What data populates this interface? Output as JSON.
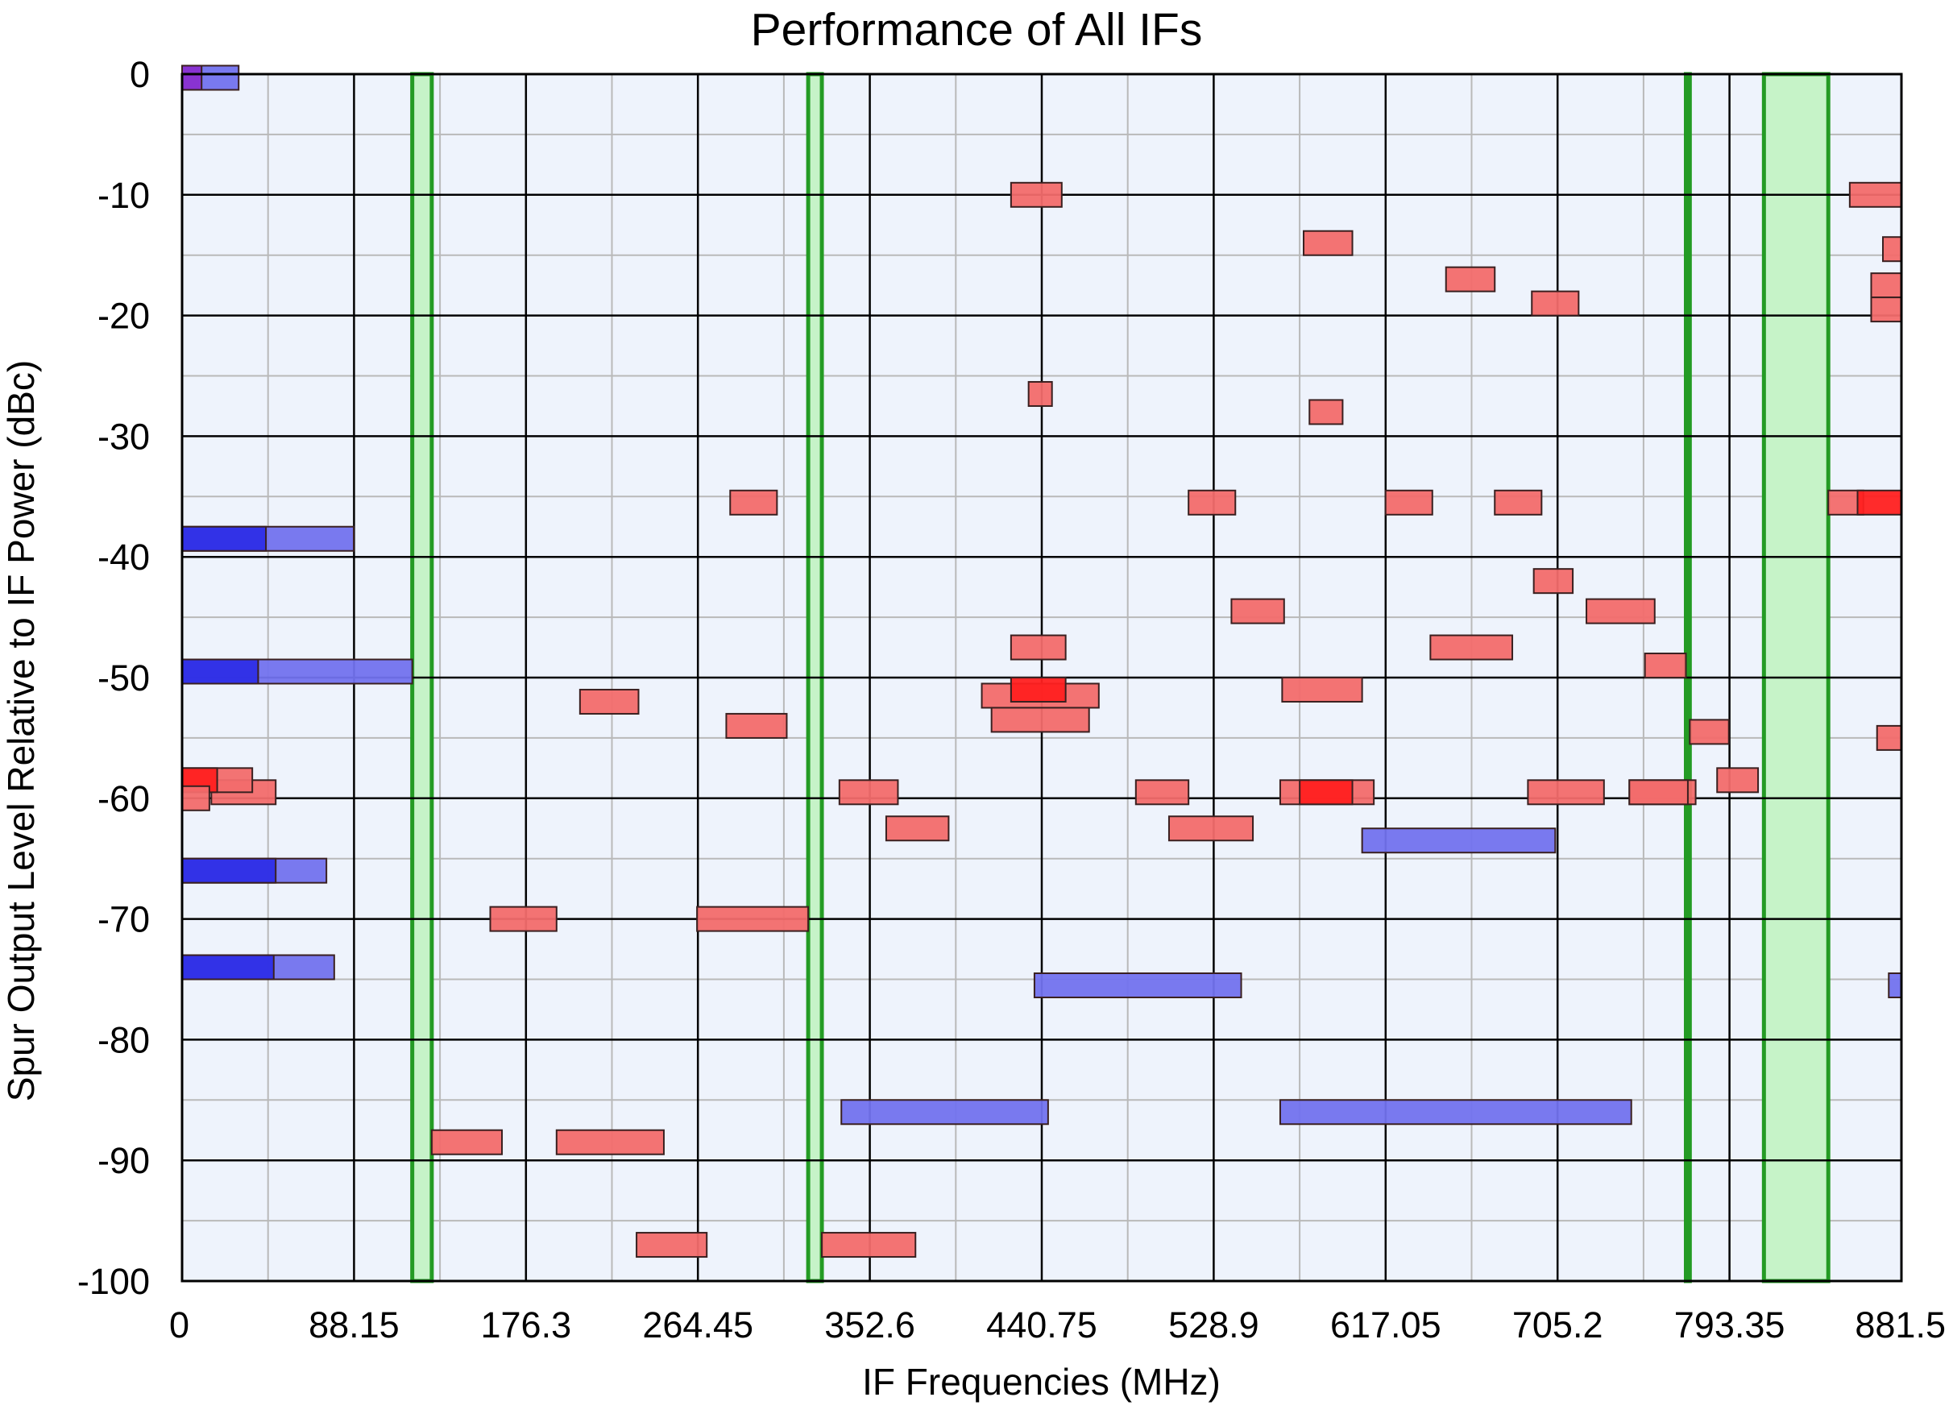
{
  "chart_data": {
    "type": "bar",
    "title": "Performance of All IFs",
    "xlabel": "IF Frequencies (MHz)",
    "ylabel": "Spur Output Level Relative to IF Power (dBc)",
    "xlim": [
      0,
      881.5
    ],
    "ylim": [
      -100,
      0
    ],
    "x_ticks": [
      0,
      88.15,
      176.3,
      264.45,
      352.6,
      440.75,
      528.9,
      617.05,
      705.2,
      793.35,
      881.5
    ],
    "x_tick_labels": [
      "0",
      "88.15",
      "176.3",
      "264.45",
      "352.6",
      "440.75",
      "528.9",
      "617.05",
      "705.2",
      "793.35",
      "881.5"
    ],
    "y_ticks": [
      0,
      -10,
      -20,
      -30,
      -40,
      -50,
      -60,
      -70,
      -80,
      -90,
      -100
    ],
    "y_tick_labels": [
      "0",
      "-10",
      "-20",
      "-30",
      "-40",
      "-50",
      "-60",
      "-70",
      "-80",
      "-90",
      "-100"
    ],
    "grid": true,
    "colors": {
      "plot_background": "#eef3fc",
      "major_grid": "#000000",
      "minor_grid": "#b9b9b9",
      "band_stroke": "#249b24",
      "band_fill": "#c6f3c8",
      "red_fill": "#f26b6b",
      "red_strong": "#ff2020",
      "blue_fill": "#7272ee",
      "blue_strong": "#2e2ee6",
      "purple": "#8a2fcf"
    },
    "green_bands": [
      {
        "x1": 118,
        "x2": 128
      },
      {
        "x1": 321,
        "x2": 328
      },
      {
        "x1": 771,
        "x2": 773
      },
      {
        "x1": 811,
        "x2": 844
      }
    ],
    "spur_bars": [
      {
        "x1": 0,
        "x2": 29,
        "y": -0.3,
        "color": "blue"
      },
      {
        "x1": 0,
        "x2": 10,
        "y": -0.3,
        "color": "purple"
      },
      {
        "x1": 0,
        "x2": 88,
        "y": -38.5,
        "color": "blue"
      },
      {
        "x1": 0,
        "x2": 43,
        "y": -38.5,
        "color": "blue_strong"
      },
      {
        "x1": 0,
        "x2": 118,
        "y": -49.5,
        "color": "blue"
      },
      {
        "x1": 0,
        "x2": 39,
        "y": -49.5,
        "color": "blue_strong"
      },
      {
        "x1": 0,
        "x2": 74,
        "y": -66,
        "color": "blue"
      },
      {
        "x1": 0,
        "x2": 48,
        "y": -66,
        "color": "blue_strong"
      },
      {
        "x1": 0,
        "x2": 78,
        "y": -74,
        "color": "blue"
      },
      {
        "x1": 0,
        "x2": 47,
        "y": -74,
        "color": "blue_strong"
      },
      {
        "x1": 15,
        "x2": 48,
        "y": -59.5,
        "color": "red"
      },
      {
        "x1": 0,
        "x2": 36,
        "y": -58.5,
        "color": "red"
      },
      {
        "x1": 0,
        "x2": 18,
        "y": -58.5,
        "color": "red_strong"
      },
      {
        "x1": 0,
        "x2": 14,
        "y": -60,
        "color": "red"
      },
      {
        "x1": 128,
        "x2": 164,
        "y": -88.5,
        "color": "red"
      },
      {
        "x1": 158,
        "x2": 192,
        "y": -70,
        "color": "red"
      },
      {
        "x1": 192,
        "x2": 247,
        "y": -88.5,
        "color": "red"
      },
      {
        "x1": 204,
        "x2": 234,
        "y": -52,
        "color": "red"
      },
      {
        "x1": 233,
        "x2": 269,
        "y": -97,
        "color": "red"
      },
      {
        "x1": 264,
        "x2": 321,
        "y": -70,
        "color": "red"
      },
      {
        "x1": 279,
        "x2": 310,
        "y": -54,
        "color": "red"
      },
      {
        "x1": 281,
        "x2": 305,
        "y": -35.5,
        "color": "red"
      },
      {
        "x1": 328,
        "x2": 376,
        "y": -97,
        "color": "red"
      },
      {
        "x1": 337,
        "x2": 367,
        "y": -59.5,
        "color": "red"
      },
      {
        "x1": 361,
        "x2": 393,
        "y": -62.5,
        "color": "red"
      },
      {
        "x1": 338,
        "x2": 444,
        "y": -86,
        "color": "blue"
      },
      {
        "x1": 425,
        "x2": 451,
        "y": -10,
        "color": "red"
      },
      {
        "x1": 434,
        "x2": 446,
        "y": -26.5,
        "color": "red"
      },
      {
        "x1": 425,
        "x2": 453,
        "y": -47.5,
        "color": "red"
      },
      {
        "x1": 410,
        "x2": 470,
        "y": -51.5,
        "color": "red"
      },
      {
        "x1": 425,
        "x2": 453,
        "y": -51,
        "color": "red_strong"
      },
      {
        "x1": 415,
        "x2": 465,
        "y": -53.5,
        "color": "red"
      },
      {
        "x1": 437,
        "x2": 543,
        "y": -75.5,
        "color": "blue"
      },
      {
        "x1": 489,
        "x2": 516,
        "y": -59.5,
        "color": "red"
      },
      {
        "x1": 516,
        "x2": 540,
        "y": -35.5,
        "color": "red"
      },
      {
        "x1": 506,
        "x2": 549,
        "y": -62.5,
        "color": "red"
      },
      {
        "x1": 538,
        "x2": 565,
        "y": -44.5,
        "color": "red"
      },
      {
        "x1": 575,
        "x2": 600,
        "y": -14,
        "color": "red"
      },
      {
        "x1": 578,
        "x2": 595,
        "y": -28,
        "color": "red"
      },
      {
        "x1": 564,
        "x2": 605,
        "y": -51,
        "color": "red"
      },
      {
        "x1": 563,
        "x2": 611,
        "y": -59.5,
        "color": "red"
      },
      {
        "x1": 573,
        "x2": 600,
        "y": -59.5,
        "color": "red_strong"
      },
      {
        "x1": 563,
        "x2": 743,
        "y": -86,
        "color": "blue"
      },
      {
        "x1": 605,
        "x2": 704,
        "y": -63.5,
        "color": "blue"
      },
      {
        "x1": 617,
        "x2": 641,
        "y": -35.5,
        "color": "red"
      },
      {
        "x1": 640,
        "x2": 682,
        "y": -47.5,
        "color": "red"
      },
      {
        "x1": 648,
        "x2": 673,
        "y": -17,
        "color": "red"
      },
      {
        "x1": 673,
        "x2": 697,
        "y": -35.5,
        "color": "red"
      },
      {
        "x1": 690,
        "x2": 729,
        "y": -59.5,
        "color": "red"
      },
      {
        "x1": 692,
        "x2": 716,
        "y": -19,
        "color": "red"
      },
      {
        "x1": 693,
        "x2": 713,
        "y": -42,
        "color": "red"
      },
      {
        "x1": 720,
        "x2": 755,
        "y": -44.5,
        "color": "red"
      },
      {
        "x1": 742,
        "x2": 776,
        "y": -59.5,
        "color": "red"
      },
      {
        "x1": 742,
        "x2": 772,
        "y": -59.5,
        "color": "red"
      },
      {
        "x1": 750,
        "x2": 771,
        "y": -49,
        "color": "red"
      },
      {
        "x1": 773,
        "x2": 793,
        "y": -54.5,
        "color": "red"
      },
      {
        "x1": 787,
        "x2": 808,
        "y": -58.5,
        "color": "red"
      },
      {
        "x1": 844,
        "x2": 862,
        "y": -35.5,
        "color": "red"
      },
      {
        "x1": 859,
        "x2": 881.5,
        "y": -35.5,
        "color": "red_strong"
      },
      {
        "x1": 855,
        "x2": 881.5,
        "y": -10,
        "color": "red"
      },
      {
        "x1": 872,
        "x2": 881.5,
        "y": -14.5,
        "color": "red"
      },
      {
        "x1": 866,
        "x2": 881.5,
        "y": -17.5,
        "color": "red"
      },
      {
        "x1": 866,
        "x2": 881.5,
        "y": -19.5,
        "color": "red"
      },
      {
        "x1": 869,
        "x2": 881.5,
        "y": -55,
        "color": "red"
      },
      {
        "x1": 875,
        "x2": 881.5,
        "y": -75.5,
        "color": "blue"
      }
    ]
  }
}
